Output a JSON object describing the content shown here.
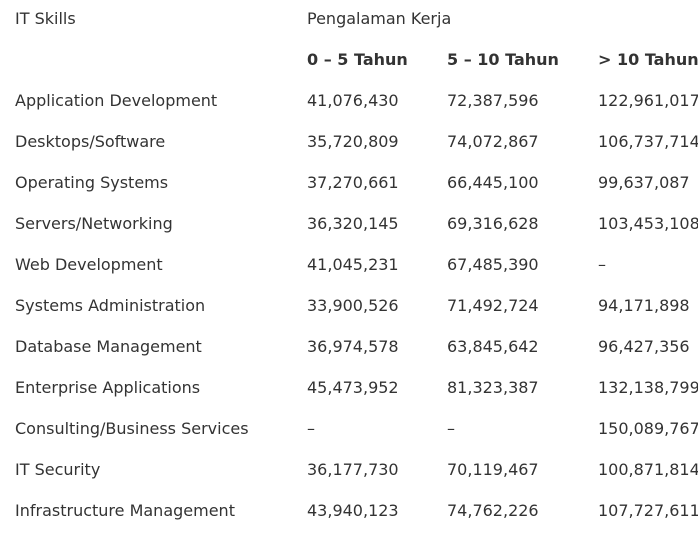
{
  "header": {
    "skills_label": "IT Skills",
    "experience_label": "Pengalaman Kerja",
    "columns": [
      "0 – 5 Tahun",
      "5 – 10 Tahun",
      "> 10 Tahun"
    ]
  },
  "rows": [
    {
      "skill": "Application Development",
      "values": [
        "41,076,430",
        "72,387,596",
        "122,961,017"
      ]
    },
    {
      "skill": "Desktops/Software",
      "values": [
        "35,720,809",
        "74,072,867",
        "106,737,714"
      ]
    },
    {
      "skill": "Operating Systems",
      "values": [
        "37,270,661",
        "66,445,100",
        "99,637,087"
      ]
    },
    {
      "skill": "Servers/Networking",
      "values": [
        "36,320,145",
        "69,316,628",
        "103,453,108"
      ]
    },
    {
      "skill": "Web Development",
      "values": [
        "41,045,231",
        "67,485,390",
        "–"
      ]
    },
    {
      "skill": "Systems Administration",
      "values": [
        "33,900,526",
        "71,492,724",
        "94,171,898"
      ]
    },
    {
      "skill": "Database Management",
      "values": [
        "36,974,578",
        "63,845,642",
        "96,427,356"
      ]
    },
    {
      "skill": "Enterprise Applications",
      "values": [
        "45,473,952",
        "81,323,387",
        "132,138,799"
      ]
    },
    {
      "skill": "Consulting/Business Services",
      "values": [
        "–",
        "–",
        "150,089,767"
      ]
    },
    {
      "skill": "IT Security",
      "values": [
        "36,177,730",
        "70,119,467",
        "100,871,814"
      ]
    },
    {
      "skill": "Infrastructure Management",
      "values": [
        "43,940,123",
        "74,762,226",
        "107,727,611"
      ]
    }
  ]
}
